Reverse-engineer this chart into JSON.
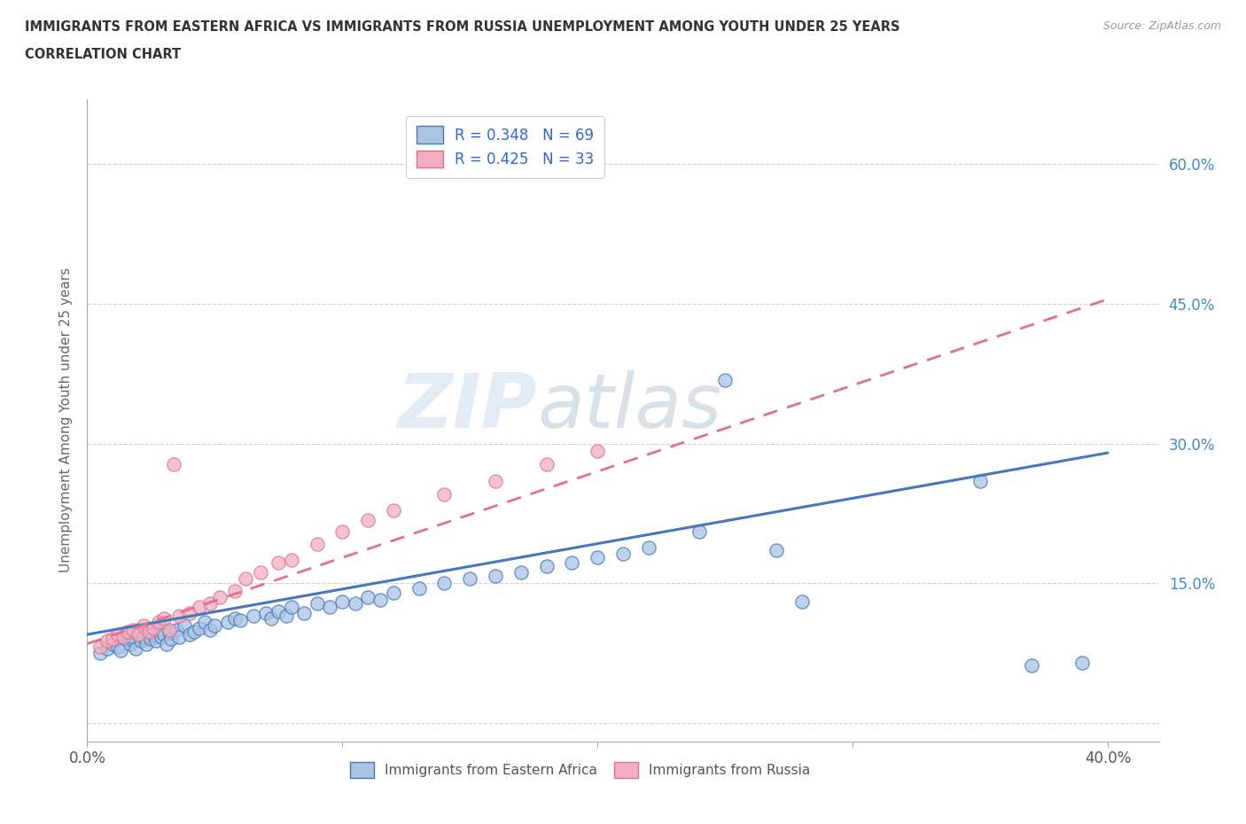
{
  "title_line1": "IMMIGRANTS FROM EASTERN AFRICA VS IMMIGRANTS FROM RUSSIA UNEMPLOYMENT AMONG YOUTH UNDER 25 YEARS",
  "title_line2": "CORRELATION CHART",
  "source": "Source: ZipAtlas.com",
  "ylabel": "Unemployment Among Youth under 25 years",
  "xlim": [
    0.0,
    0.42
  ],
  "ylim": [
    -0.02,
    0.67
  ],
  "R_africa": 0.348,
  "N_africa": 69,
  "R_russia": 0.425,
  "N_russia": 33,
  "color_africa": "#aac4e2",
  "color_russia": "#f2afc0",
  "line_color_africa": "#4477bb",
  "line_color_russia": "#e07090",
  "watermark_zip": "ZIP",
  "watermark_atlas": "atlas",
  "africa_x": [
    0.005,
    0.008,
    0.01,
    0.012,
    0.013,
    0.015,
    0.015,
    0.017,
    0.018,
    0.018,
    0.019,
    0.02,
    0.02,
    0.021,
    0.022,
    0.023,
    0.024,
    0.025,
    0.026,
    0.027,
    0.028,
    0.029,
    0.03,
    0.031,
    0.032,
    0.033,
    0.035,
    0.036,
    0.038,
    0.04,
    0.042,
    0.044,
    0.046,
    0.048,
    0.05,
    0.055,
    0.058,
    0.06,
    0.065,
    0.07,
    0.072,
    0.075,
    0.078,
    0.08,
    0.085,
    0.09,
    0.095,
    0.1,
    0.105,
    0.11,
    0.115,
    0.12,
    0.13,
    0.14,
    0.15,
    0.16,
    0.17,
    0.18,
    0.19,
    0.2,
    0.21,
    0.22,
    0.24,
    0.25,
    0.27,
    0.28,
    0.35,
    0.37,
    0.39
  ],
  "africa_y": [
    0.075,
    0.08,
    0.085,
    0.082,
    0.078,
    0.09,
    0.095,
    0.085,
    0.088,
    0.092,
    0.08,
    0.095,
    0.1,
    0.088,
    0.092,
    0.085,
    0.098,
    0.09,
    0.095,
    0.088,
    0.1,
    0.092,
    0.095,
    0.085,
    0.098,
    0.09,
    0.1,
    0.092,
    0.105,
    0.095,
    0.098,
    0.102,
    0.108,
    0.1,
    0.105,
    0.108,
    0.112,
    0.11,
    0.115,
    0.118,
    0.112,
    0.12,
    0.115,
    0.125,
    0.118,
    0.128,
    0.125,
    0.13,
    0.128,
    0.135,
    0.132,
    0.14,
    0.145,
    0.15,
    0.155,
    0.158,
    0.162,
    0.168,
    0.172,
    0.178,
    0.182,
    0.188,
    0.205,
    0.368,
    0.185,
    0.13,
    0.26,
    0.062,
    0.065
  ],
  "russia_x": [
    0.005,
    0.008,
    0.01,
    0.012,
    0.014,
    0.016,
    0.018,
    0.02,
    0.022,
    0.024,
    0.026,
    0.028,
    0.03,
    0.032,
    0.034,
    0.036,
    0.04,
    0.044,
    0.048,
    0.052,
    0.058,
    0.062,
    0.068,
    0.075,
    0.08,
    0.09,
    0.1,
    0.11,
    0.12,
    0.14,
    0.16,
    0.18,
    0.2
  ],
  "russia_y": [
    0.082,
    0.088,
    0.09,
    0.095,
    0.092,
    0.098,
    0.1,
    0.095,
    0.105,
    0.098,
    0.102,
    0.108,
    0.112,
    0.1,
    0.278,
    0.115,
    0.118,
    0.125,
    0.128,
    0.135,
    0.142,
    0.155,
    0.162,
    0.172,
    0.175,
    0.192,
    0.205,
    0.218,
    0.228,
    0.245,
    0.26,
    0.278,
    0.292
  ],
  "trend_africa_x0": 0.0,
  "trend_africa_x1": 0.4,
  "trend_africa_y0": 0.095,
  "trend_africa_y1": 0.29,
  "trend_russia_x0": 0.0,
  "trend_russia_x1": 0.4,
  "trend_russia_y0": 0.085,
  "trend_russia_y1": 0.455
}
